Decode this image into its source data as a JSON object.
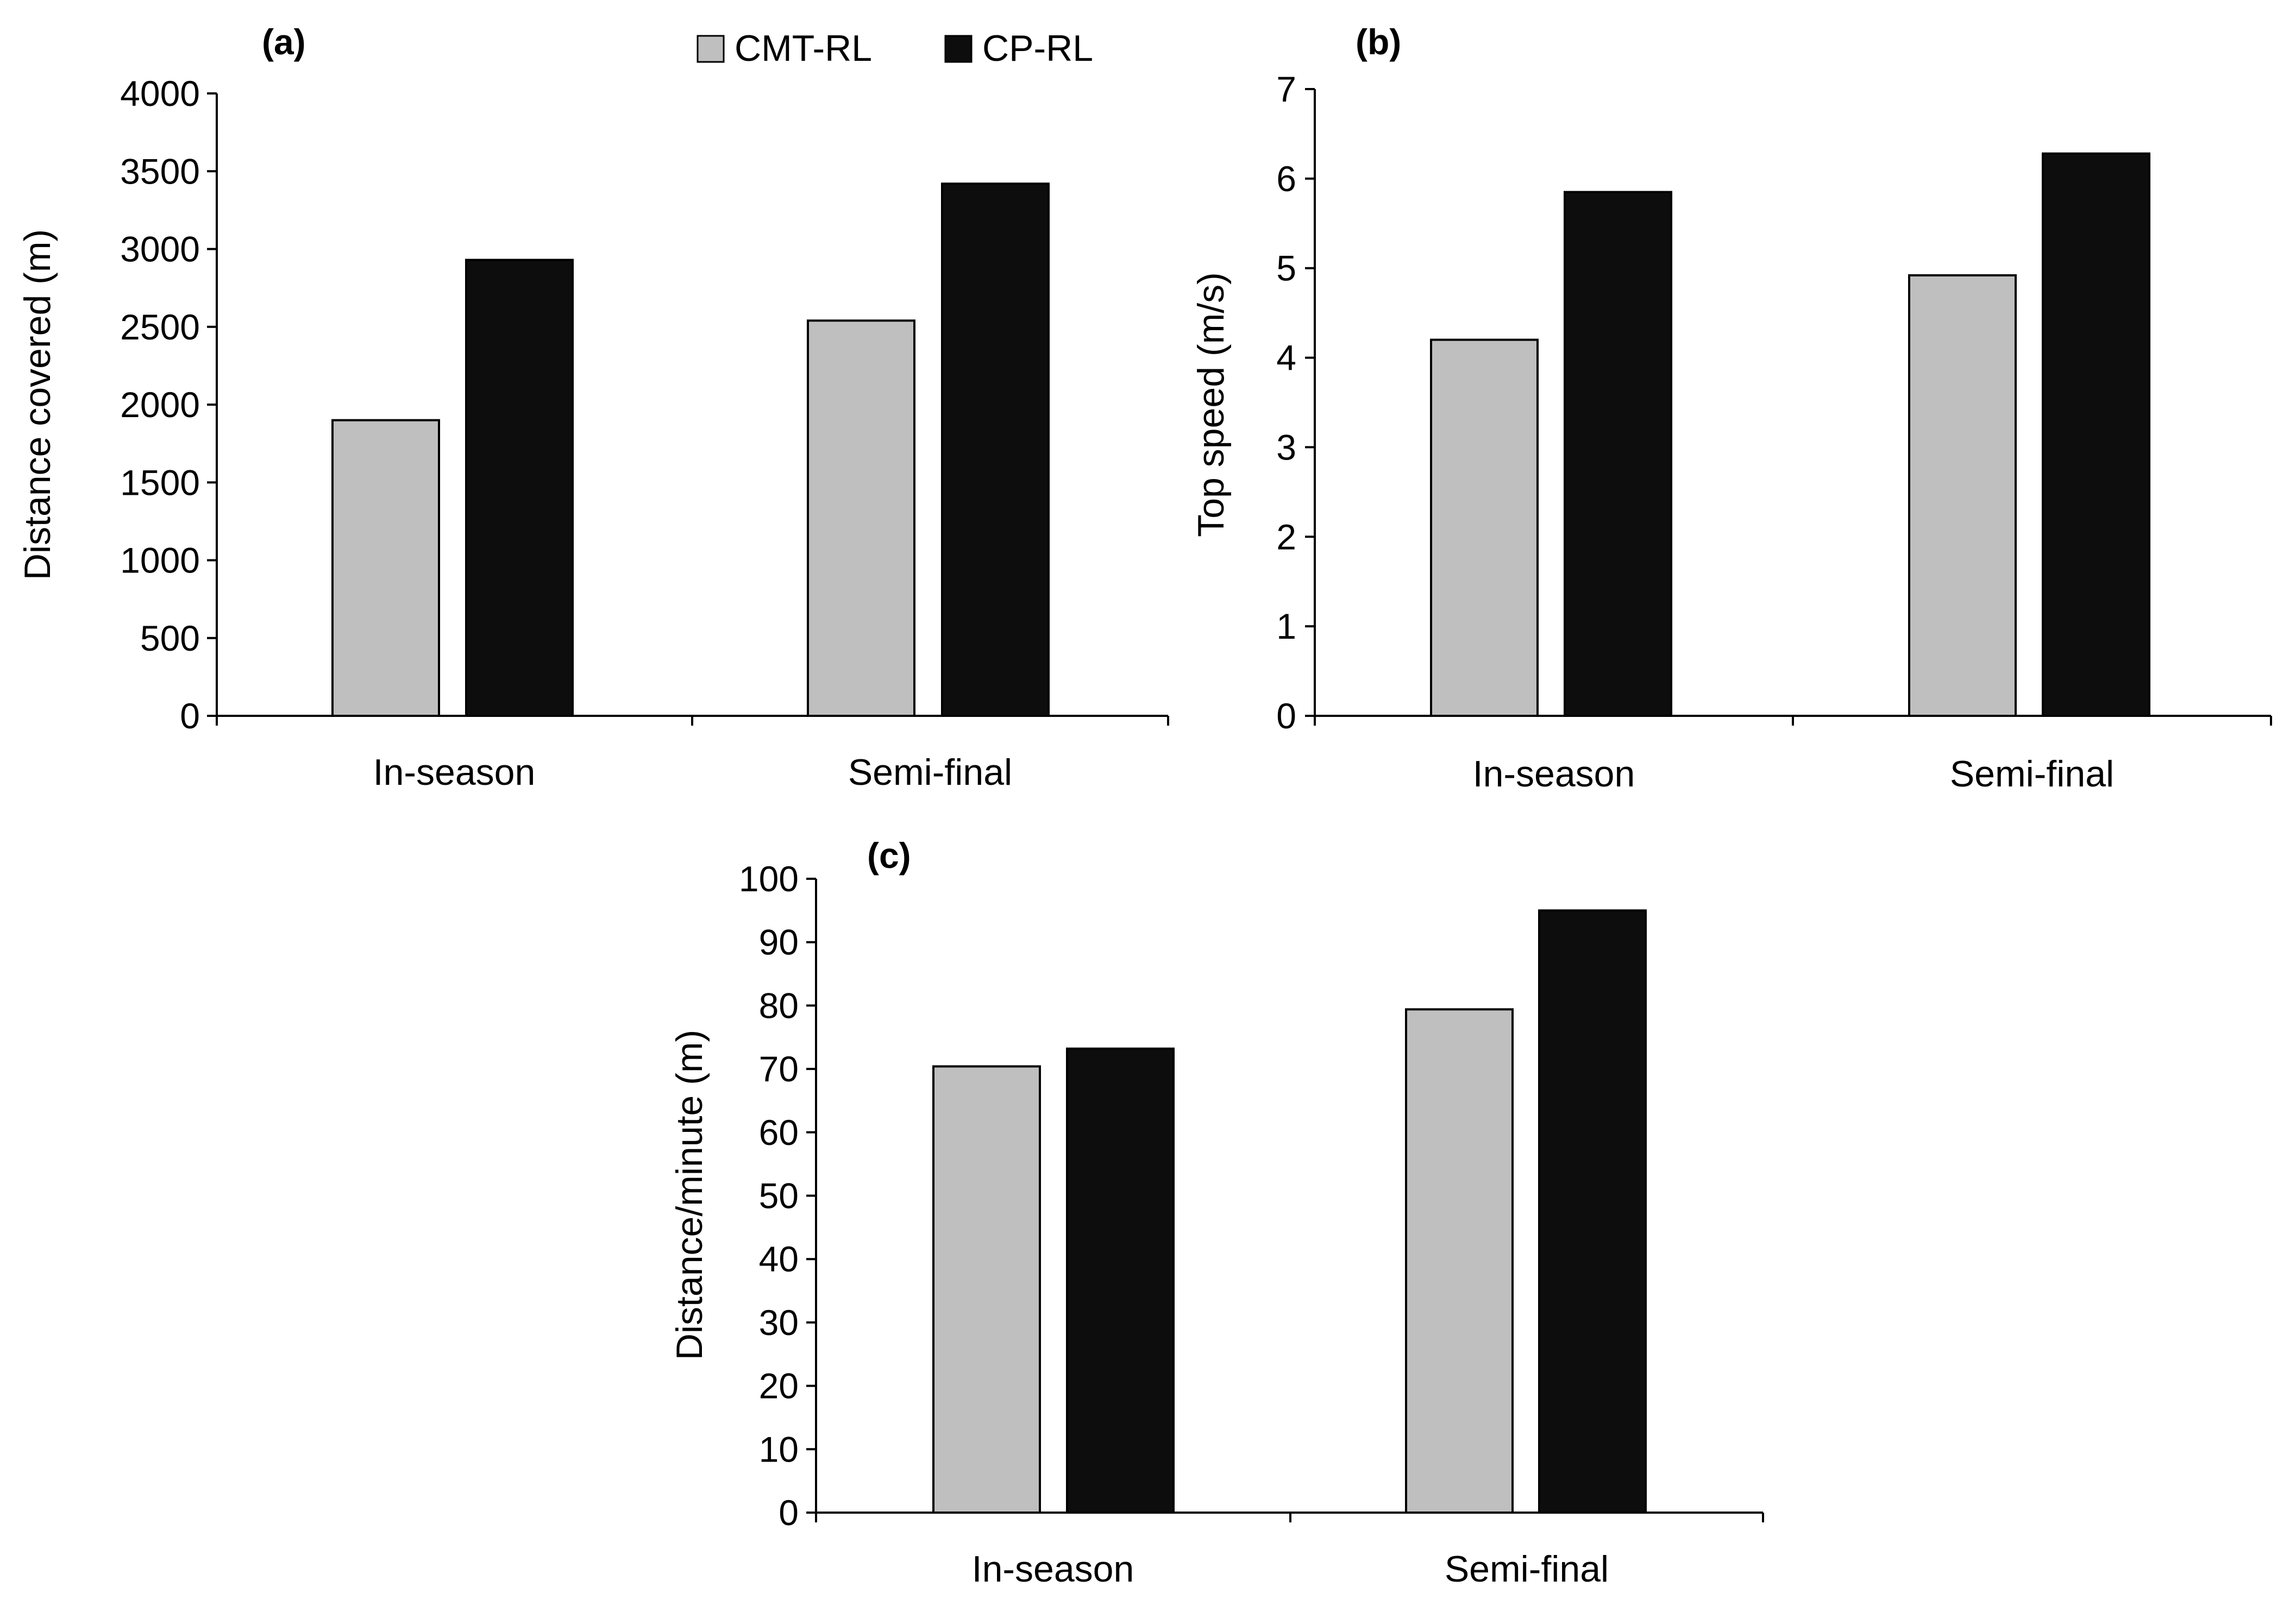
{
  "figure": {
    "legend": [
      {
        "label": "CMT-RL",
        "color": "#bfbfbf"
      },
      {
        "label": "CP-RL",
        "color": "#0d0d0d"
      }
    ]
  },
  "chart_data": [
    {
      "panel": "(a)",
      "type": "bar",
      "categories": [
        "In-season",
        "Semi-final"
      ],
      "series": [
        {
          "name": "CMT-RL",
          "color": "#bfbfbf",
          "values": [
            1900,
            2540
          ]
        },
        {
          "name": "CP-RL",
          "color": "#0d0d0d",
          "values": [
            2930,
            3420
          ]
        }
      ],
      "ylabel": "Distance covered (m)",
      "xlabel": "",
      "ylim": [
        0,
        4000
      ],
      "yticks": [
        "0",
        "500",
        "1000",
        "1500",
        "2000",
        "2500",
        "3000",
        "3500",
        "4000"
      ],
      "grid": false
    },
    {
      "panel": "(b)",
      "type": "bar",
      "categories": [
        "In-season",
        "Semi-final"
      ],
      "series": [
        {
          "name": "CMT-RL",
          "color": "#bfbfbf",
          "values": [
            4.2,
            4.92
          ]
        },
        {
          "name": "CP-RL",
          "color": "#0d0d0d",
          "values": [
            5.85,
            6.28
          ]
        }
      ],
      "ylabel": "Top speed (m/s)",
      "xlabel": "",
      "ylim": [
        0,
        7
      ],
      "yticks": [
        "0",
        "1",
        "2",
        "3",
        "4",
        "5",
        "6",
        "7"
      ],
      "grid": false
    },
    {
      "panel": "(c)",
      "type": "bar",
      "categories": [
        "In-season",
        "Semi-final"
      ],
      "series": [
        {
          "name": "CMT-RL",
          "color": "#bfbfbf",
          "values": [
            70.4,
            79.4
          ]
        },
        {
          "name": "CP-RL",
          "color": "#0d0d0d",
          "values": [
            73.2,
            95
          ]
        }
      ],
      "ylabel": "Distance/minute (m)",
      "xlabel": "",
      "ylim": [
        0,
        100
      ],
      "yticks": [
        "0",
        "10",
        "20",
        "30",
        "40",
        "50",
        "60",
        "70",
        "80",
        "90",
        "100"
      ],
      "grid": false
    }
  ]
}
